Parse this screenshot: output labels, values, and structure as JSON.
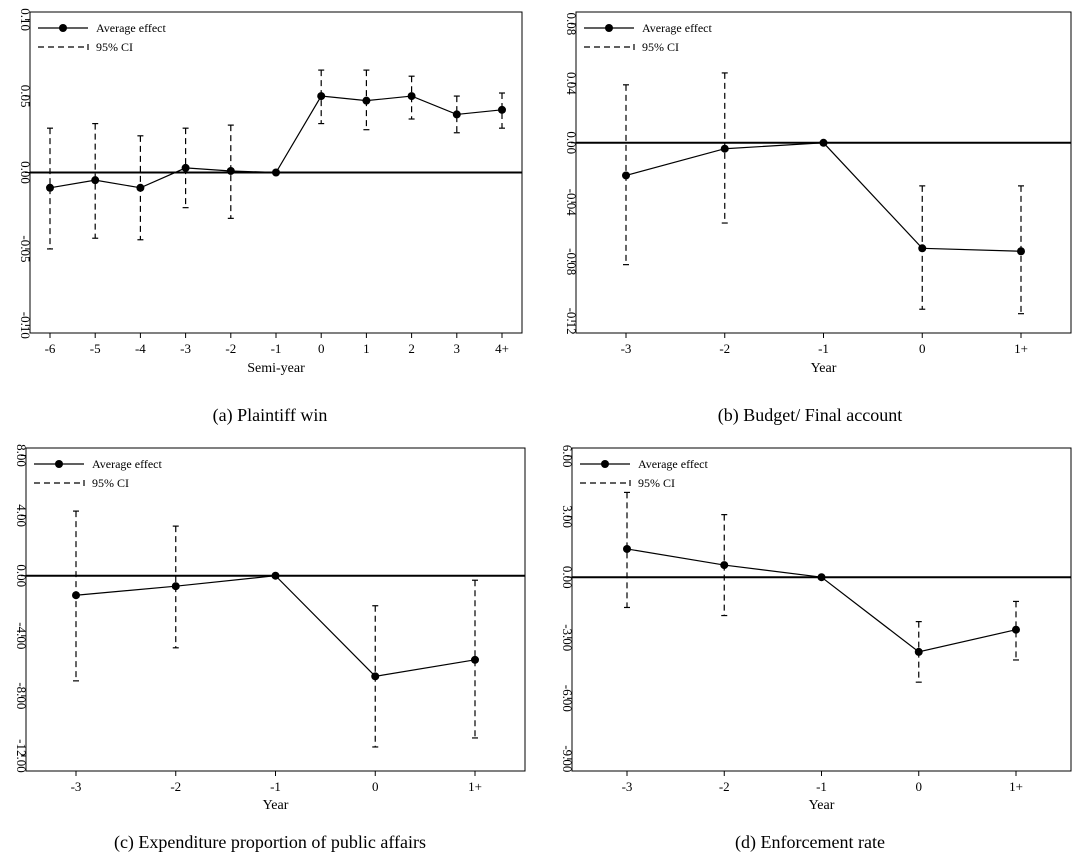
{
  "legend": {
    "effect_label": "Average effect",
    "ci_label": "95% CI"
  },
  "chart_data": [
    {
      "type": "line",
      "title": "(a) Plaintiff win",
      "xlabel": "Semi-year",
      "ylabel": "",
      "categories": [
        "-6",
        "-5",
        "-4",
        "-3",
        "-2",
        "-1",
        "0",
        "1",
        "2",
        "3",
        "4+"
      ],
      "ylim": [
        -0.105,
        0.105
      ],
      "yticks": [
        -0.1,
        -0.05,
        0.0,
        0.05,
        0.1
      ],
      "ytick_labels": [
        "-0.10",
        "-0.05",
        "0.00",
        "0.05",
        "0.10"
      ],
      "series": [
        {
          "name": "Average effect",
          "values": [
            -0.01,
            -0.005,
            -0.01,
            0.003,
            0.001,
            0.0,
            0.05,
            0.047,
            0.05,
            0.038,
            0.041
          ]
        },
        {
          "name": "95% CI",
          "lower": [
            -0.05,
            -0.043,
            -0.044,
            -0.023,
            -0.03,
            null,
            0.032,
            0.028,
            0.035,
            0.026,
            0.029
          ],
          "upper": [
            0.029,
            0.032,
            0.024,
            0.029,
            0.031,
            null,
            0.067,
            0.067,
            0.063,
            0.05,
            0.052
          ]
        }
      ],
      "zero_line": true,
      "legend_position": "top-left"
    },
    {
      "type": "line",
      "title": "(b) Budget/ Final account",
      "xlabel": "Year",
      "ylabel": "",
      "categories": [
        "-3",
        "-2",
        "-1",
        "0",
        "1+"
      ],
      "ylim": [
        -0.128,
        0.088
      ],
      "yticks": [
        -0.12,
        -0.08,
        -0.04,
        0.0,
        0.04,
        0.08
      ],
      "ytick_labels": [
        "-0.12",
        "-0.08",
        "-0.04",
        "0.00",
        "0.04",
        "0.08"
      ],
      "series": [
        {
          "name": "Average effect",
          "values": [
            -0.022,
            -0.004,
            0.0,
            -0.071,
            -0.073
          ]
        },
        {
          "name": "95% CI",
          "lower": [
            -0.082,
            -0.054,
            null,
            -0.112,
            -0.115
          ],
          "upper": [
            0.039,
            0.047,
            null,
            -0.029,
            -0.029
          ]
        }
      ],
      "zero_line": true,
      "legend_position": "top-left"
    },
    {
      "type": "line",
      "title": "(c) Expenditure proportion of public affairs",
      "xlabel": "Year",
      "ylabel": "",
      "categories": [
        "-3",
        "-2",
        "-1",
        "0",
        "1+"
      ],
      "ylim": [
        -13.0,
        8.5
      ],
      "yticks": [
        -12.0,
        -8.0,
        -4.0,
        0.0,
        4.0,
        8.0
      ],
      "ytick_labels": [
        "-12.00",
        "-8.00",
        "-4.00",
        "0.00",
        "4.00",
        "8.00"
      ],
      "series": [
        {
          "name": "Average effect",
          "values": [
            -1.3,
            -0.7,
            0.0,
            -6.7,
            -5.6
          ]
        },
        {
          "name": "95% CI",
          "lower": [
            -7.0,
            -4.8,
            null,
            -11.4,
            -10.8
          ],
          "upper": [
            4.3,
            3.3,
            null,
            -2.0,
            -0.3
          ]
        }
      ],
      "zero_line": true,
      "legend_position": "top-left"
    },
    {
      "type": "line",
      "title": "(d) Enforcement rate",
      "xlabel": "Year",
      "ylabel": "",
      "categories": [
        "-3",
        "-2",
        "-1",
        "0",
        "1+"
      ],
      "ylim": [
        -9.6,
        6.4
      ],
      "yticks": [
        -9.0,
        -6.0,
        -3.0,
        0.0,
        3.0,
        6.0
      ],
      "ytick_labels": [
        "-9.00",
        "-6.00",
        "-3.00",
        "0.00",
        "3.00",
        "6.00"
      ],
      "series": [
        {
          "name": "Average effect",
          "values": [
            1.4,
            0.6,
            0.0,
            -3.7,
            -2.6
          ]
        },
        {
          "name": "95% CI",
          "lower": [
            -1.5,
            -1.9,
            null,
            -5.2,
            -4.1
          ],
          "upper": [
            4.2,
            3.1,
            null,
            -2.2,
            -1.2
          ]
        }
      ],
      "zero_line": true,
      "legend_position": "top-left"
    }
  ]
}
